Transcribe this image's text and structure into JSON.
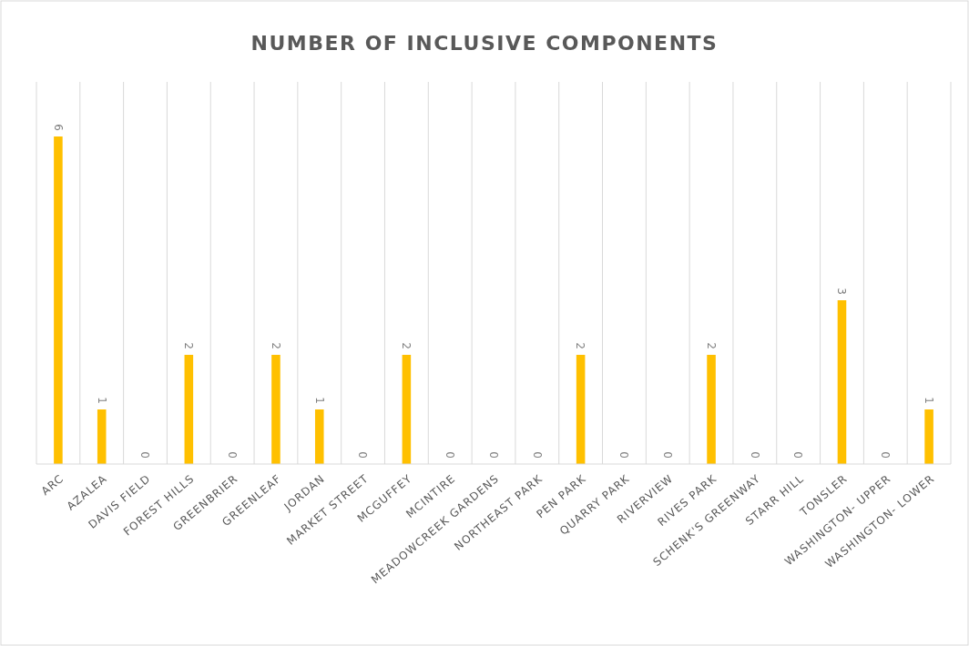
{
  "chart_data": {
    "type": "bar",
    "title": "NUMBER OF INCLUSIVE COMPONENTS",
    "categories": [
      "ARC",
      "AZALEA",
      "DAVIS FIELD",
      "FOREST HILLS",
      "GREENBRIER",
      "GREENLEAF",
      "JORDAN",
      "MARKET STREET",
      "MCGUFFEY",
      "MCINTIRE",
      "MEADOWCREEK GARDENS",
      "NORTHEAST PARK",
      "PEN PARK",
      "QUARRY PARK",
      "RIVERVIEW",
      "RIVES PARK",
      "SCHENK'S GREENWAY",
      "STARR HILL",
      "TONSLER",
      "WASHINGTON- UPPER",
      "WASHINGTON- LOWER"
    ],
    "values": [
      6,
      1,
      0,
      2,
      0,
      2,
      1,
      0,
      2,
      0,
      0,
      0,
      2,
      0,
      0,
      2,
      0,
      0,
      3,
      0,
      1
    ],
    "color": "#ffc000",
    "ylim": [
      0,
      7
    ],
    "grid": "x",
    "data_labels": true,
    "tick_labels": "x"
  }
}
